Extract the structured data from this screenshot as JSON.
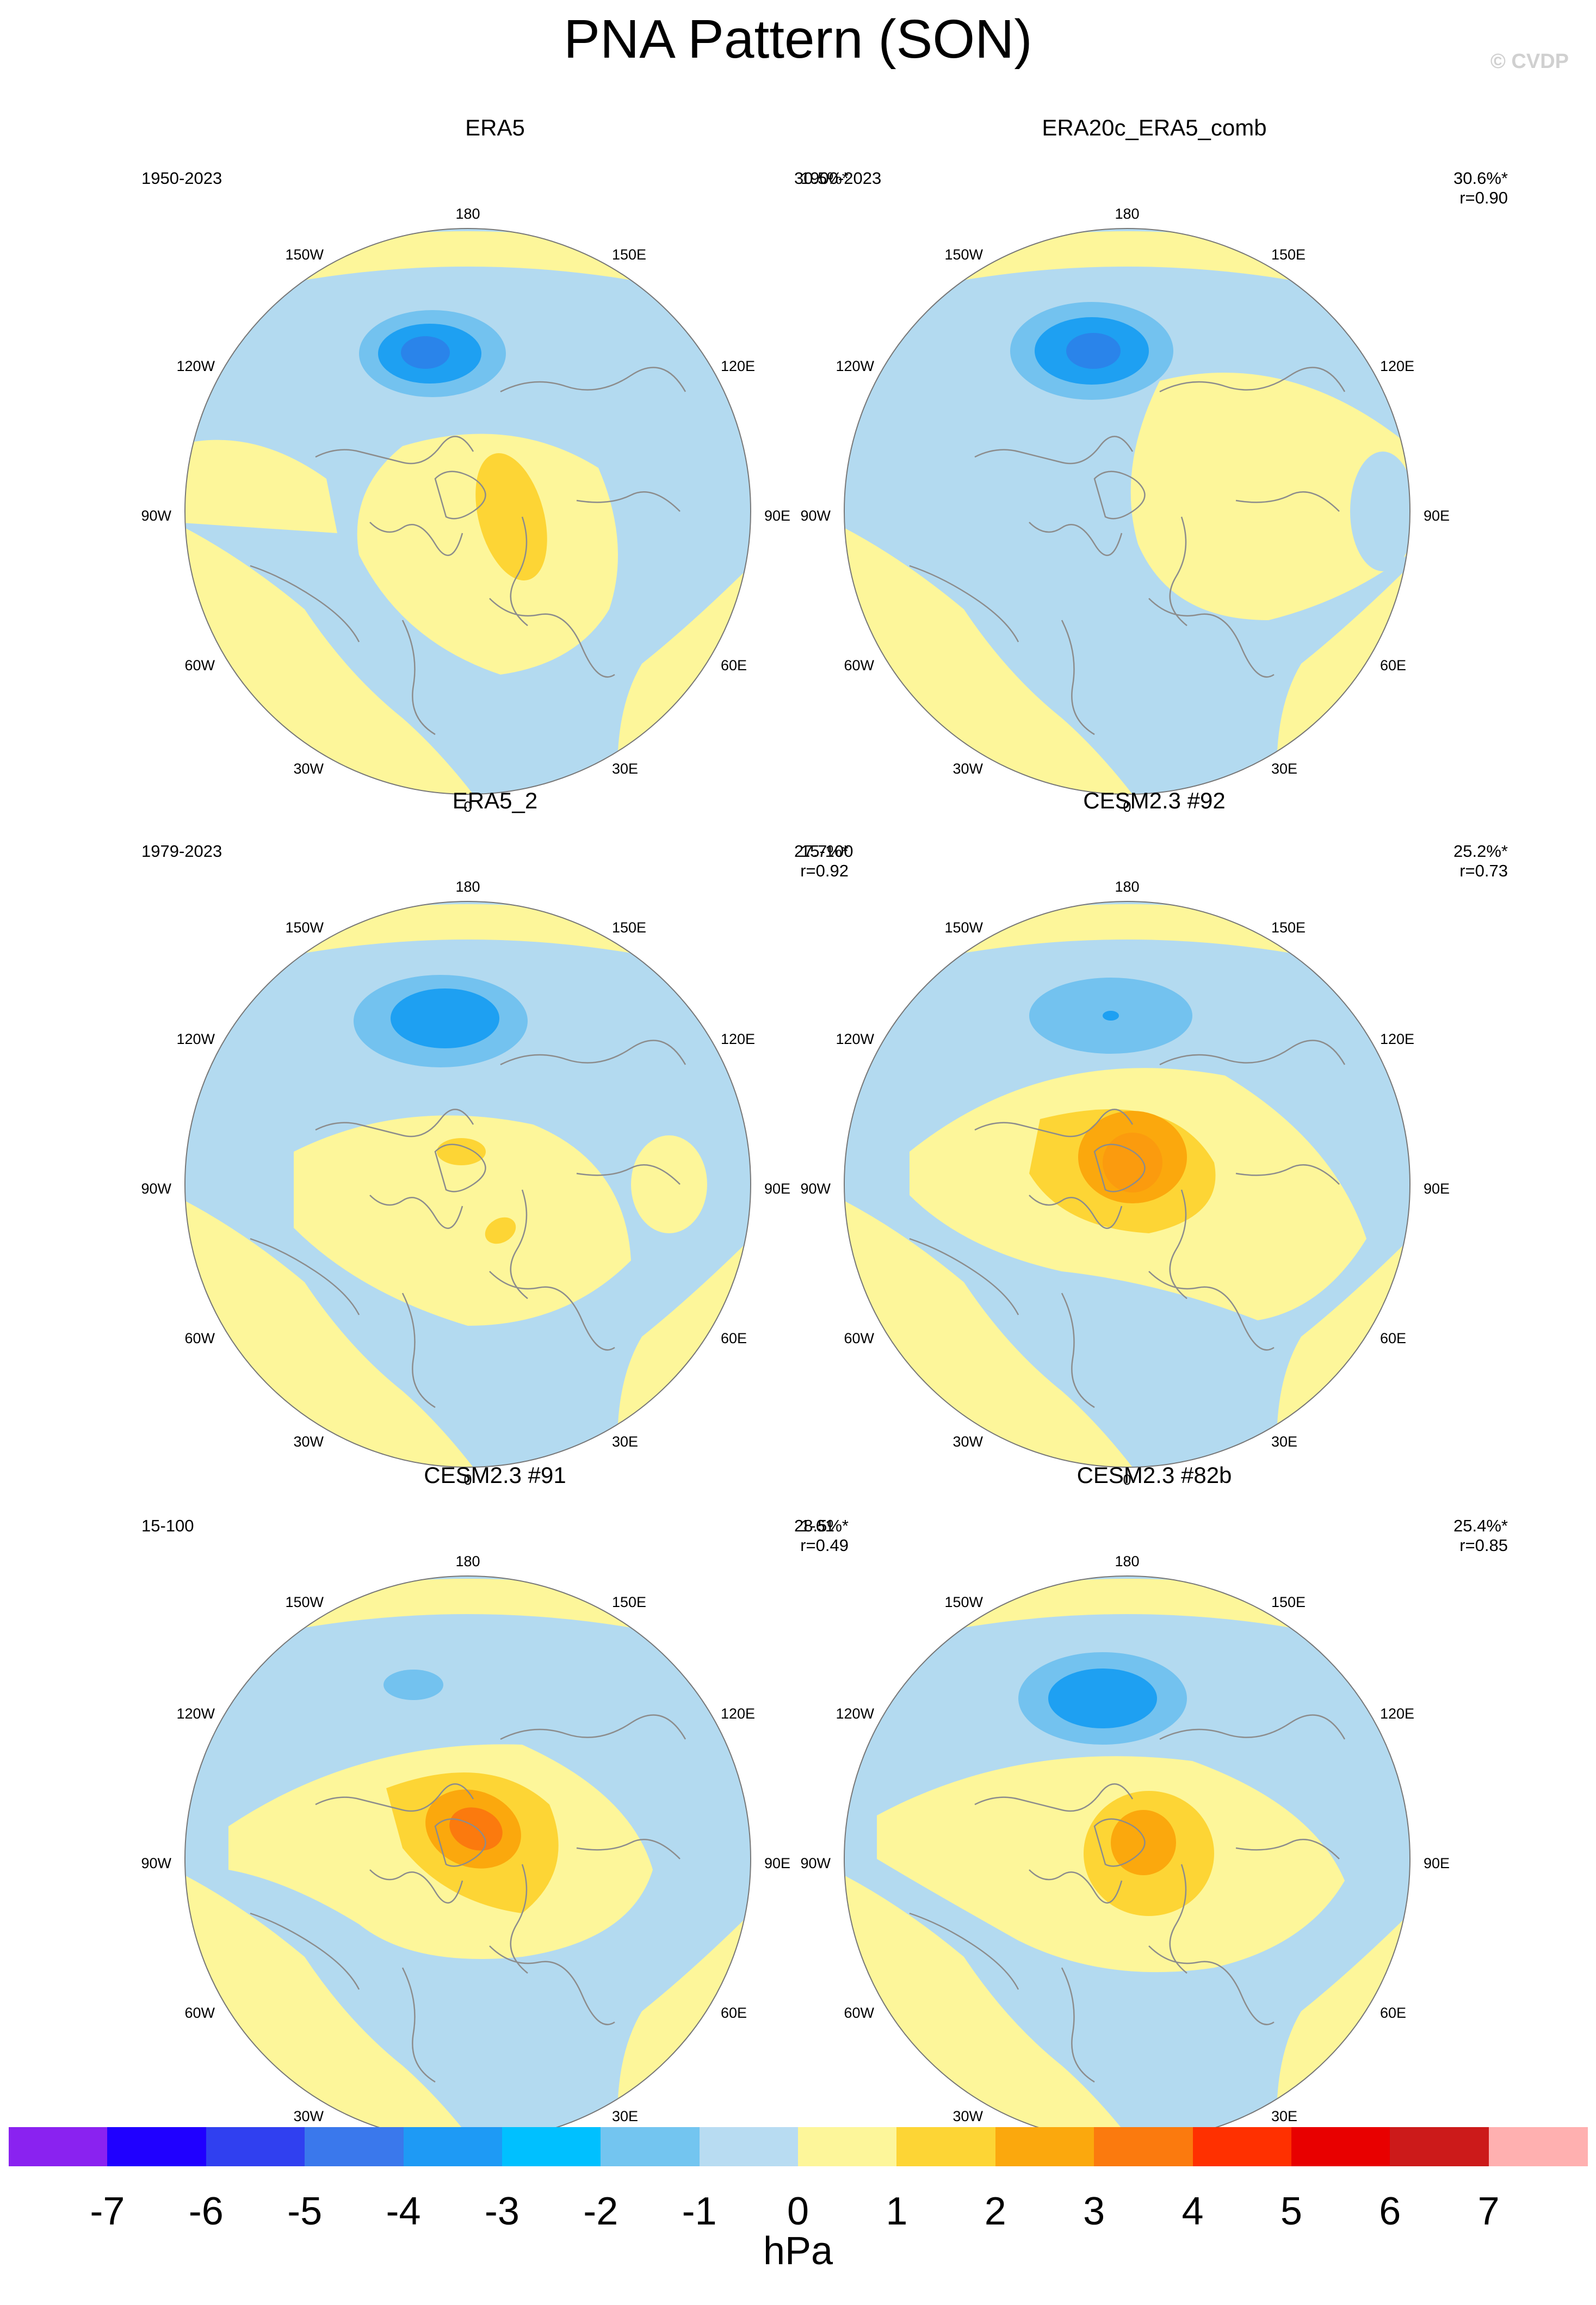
{
  "title": "PNA Pattern (SON)",
  "credit": "© CVDP",
  "lon_labels": [
    "180",
    "150E",
    "120E",
    "90E",
    "60E",
    "30E",
    "0",
    "30W",
    "60W",
    "90W",
    "120W",
    "150W"
  ],
  "colors": {
    "land_line": "#8c8c8c",
    "light_blue": "#b3daf0",
    "blue_1": "#73c2ef",
    "blue_2": "#1ea0f2",
    "blue_3": "#2a84ea",
    "yellow": "#fdf69a",
    "gold_1": "#fdd535",
    "gold_2": "#fba80d",
    "orange": "#fb7a0e"
  },
  "panels": [
    {
      "title": "ERA5",
      "period": "1950-2023",
      "pct": "30.5%*",
      "r": ""
    },
    {
      "title": "ERA20c_ERA5_comb",
      "period": "1900-2023",
      "pct": "30.6%*",
      "r": "r=0.90"
    },
    {
      "title": "ERA5_2",
      "period": "1979-2023",
      "pct": "27.7%*",
      "r": "r=0.92"
    },
    {
      "title": "CESM2.3 #92",
      "period": "15-100",
      "pct": "25.2%*",
      "r": "r=0.73"
    },
    {
      "title": "CESM2.3 #91",
      "period": "15-100",
      "pct": "28.5%*",
      "r": "r=0.49"
    },
    {
      "title": "CESM2.3 #82b",
      "period": "1-61",
      "pct": "25.4%*",
      "r": "r=0.85"
    }
  ],
  "colorbar": {
    "unit": "hPa",
    "ticks": [
      "-7",
      "-6",
      "-5",
      "-4",
      "-3",
      "-2",
      "-1",
      "0",
      "1",
      "2",
      "3",
      "4",
      "5",
      "6",
      "7"
    ],
    "colors": [
      "#8a22f0",
      "#2000ff",
      "#3040f0",
      "#3a78ec",
      "#1e9af5",
      "#00c0ff",
      "#73c5f0",
      "#b8dcf2",
      "#fdf69a",
      "#fdd535",
      "#fba80d",
      "#fb7a0e",
      "#ff3000",
      "#e80000",
      "#cc1a1a",
      "#ffb0b0"
    ]
  }
}
